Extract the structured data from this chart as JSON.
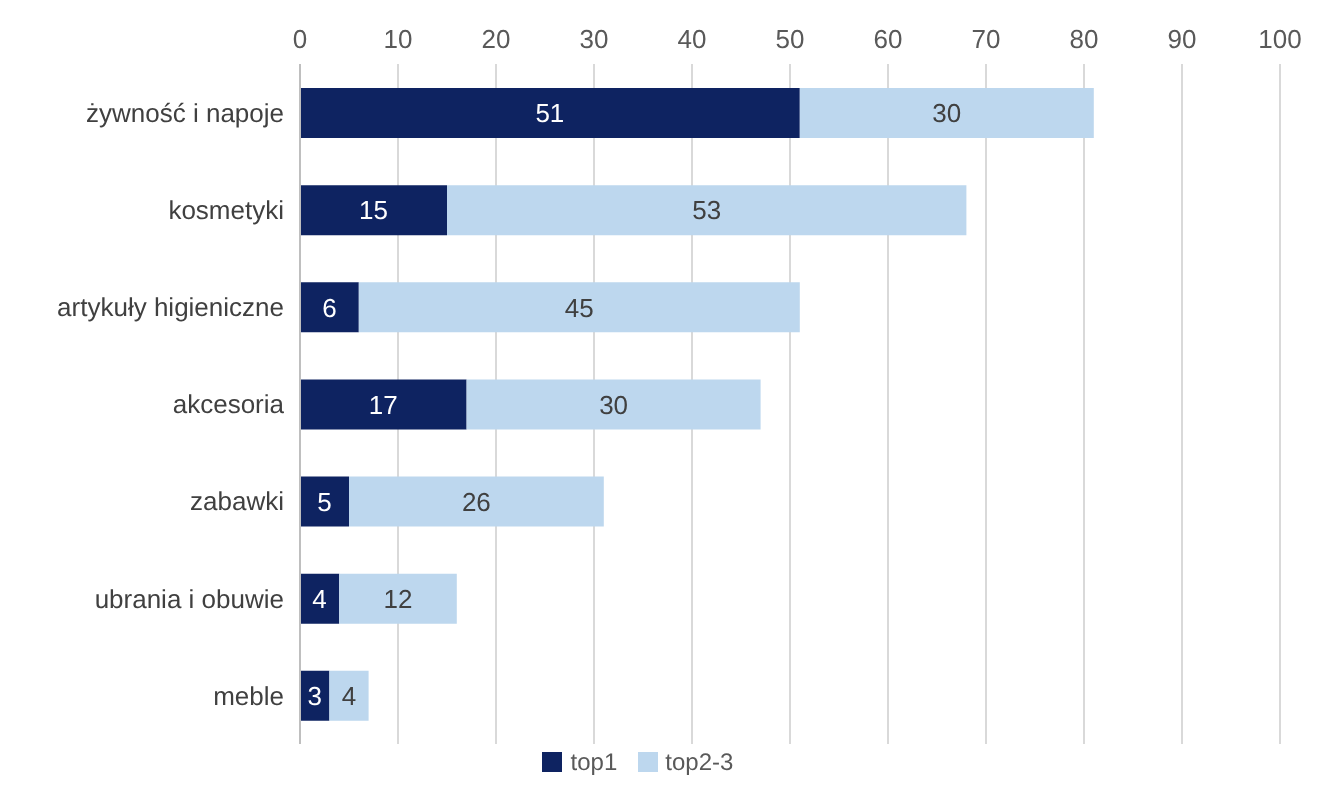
{
  "chart_data": {
    "type": "bar",
    "orientation": "horizontal",
    "stacked": true,
    "categories": [
      "żywność i napoje",
      "kosmetyki",
      "artykuły higieniczne",
      "akcesoria",
      "zabawki",
      "ubrania i obuwie",
      "meble"
    ],
    "series": [
      {
        "name": "top1",
        "color": "#0e2361",
        "values": [
          51,
          15,
          6,
          17,
          5,
          4,
          3
        ]
      },
      {
        "name": "top2-3",
        "color": "#bdd7ee",
        "values": [
          30,
          53,
          45,
          30,
          26,
          12,
          4
        ]
      }
    ],
    "xlim": [
      0,
      100
    ],
    "xticks": [
      0,
      10,
      20,
      30,
      40,
      50,
      60,
      70,
      80,
      90,
      100
    ],
    "grid": "x",
    "legend": "bottom",
    "data_labels": true
  }
}
